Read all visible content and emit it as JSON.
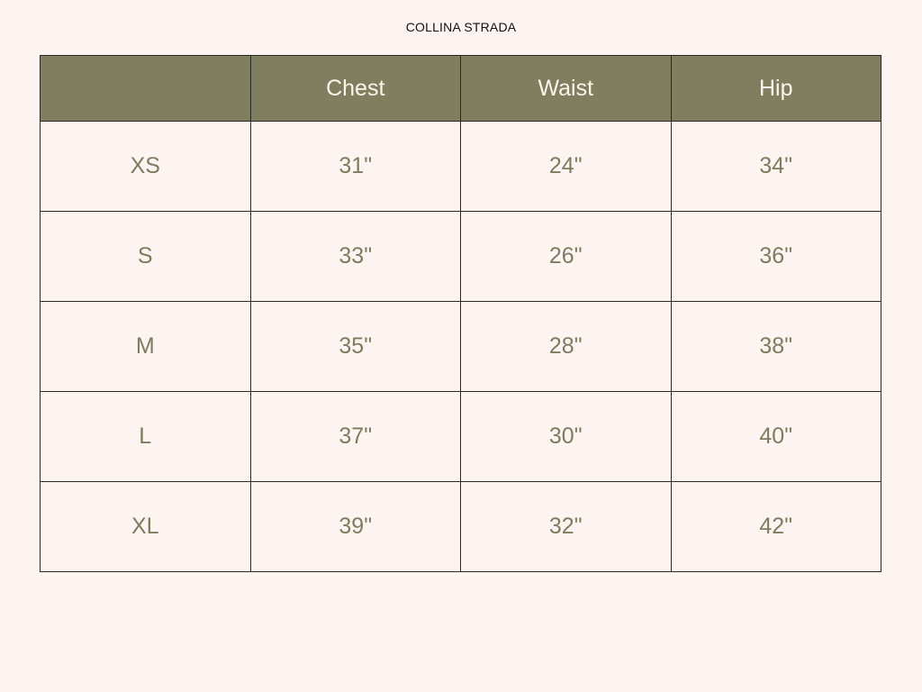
{
  "title": "COLLINA STRADA",
  "header": [
    "",
    "Chest",
    "Waist",
    "Hip"
  ],
  "rows": [
    [
      "XS",
      "31\"",
      "24\"",
      "34\""
    ],
    [
      "S",
      "33\"",
      "26\"",
      "36\""
    ],
    [
      "M",
      "35\"",
      "28\"",
      "38\""
    ],
    [
      "L",
      "37\"",
      "30\"",
      "40\""
    ],
    [
      "XL",
      "39\"",
      "32\"",
      "42\""
    ]
  ],
  "colors": {
    "header_bg": "#7f7f5f",
    "header_text": "#fbf5ea",
    "cell_text": "#7c7c5e",
    "background": "#fdf3f1"
  }
}
